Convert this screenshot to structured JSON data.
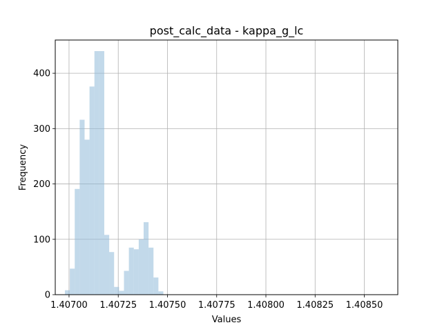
{
  "chart_data": {
    "type": "bar",
    "title": "post_calc_data - kappa_g_lc",
    "xlabel": "Values",
    "ylabel": "Frequency",
    "xlim": [
      1.40693,
      1.40867
    ],
    "ylim": [
      0,
      460
    ],
    "x_ticks": [
      "1.40700",
      "1.40725",
      "1.40750",
      "1.40775",
      "1.40800",
      "1.40825",
      "1.40850"
    ],
    "y_ticks": [
      "0",
      "100",
      "200",
      "300",
      "400"
    ],
    "grid": true,
    "bar_color": "#8fbad8",
    "bins": [
      {
        "x0": 1.406979,
        "x1": 1.407004,
        "count": 8
      },
      {
        "x0": 1.407004,
        "x1": 1.407029,
        "count": 47
      },
      {
        "x0": 1.407029,
        "x1": 1.407054,
        "count": 191
      },
      {
        "x0": 1.407054,
        "x1": 1.407079,
        "count": 316
      },
      {
        "x0": 1.407079,
        "x1": 1.407104,
        "count": 280
      },
      {
        "x0": 1.407104,
        "x1": 1.407129,
        "count": 376
      },
      {
        "x0": 1.407129,
        "x1": 1.407154,
        "count": 440
      },
      {
        "x0": 1.407154,
        "x1": 1.407179,
        "count": 440
      },
      {
        "x0": 1.407179,
        "x1": 1.407204,
        "count": 108
      },
      {
        "x0": 1.407204,
        "x1": 1.407229,
        "count": 77
      },
      {
        "x0": 1.407229,
        "x1": 1.407254,
        "count": 14
      },
      {
        "x0": 1.407254,
        "x1": 1.407279,
        "count": 7
      },
      {
        "x0": 1.407279,
        "x1": 1.407304,
        "count": 43
      },
      {
        "x0": 1.407304,
        "x1": 1.407329,
        "count": 85
      },
      {
        "x0": 1.407329,
        "x1": 1.407354,
        "count": 82
      },
      {
        "x0": 1.407354,
        "x1": 1.407379,
        "count": 100
      },
      {
        "x0": 1.407379,
        "x1": 1.407404,
        "count": 131
      },
      {
        "x0": 1.407404,
        "x1": 1.407429,
        "count": 85
      },
      {
        "x0": 1.407429,
        "x1": 1.407454,
        "count": 31
      },
      {
        "x0": 1.407454,
        "x1": 1.407479,
        "count": 6
      }
    ]
  }
}
